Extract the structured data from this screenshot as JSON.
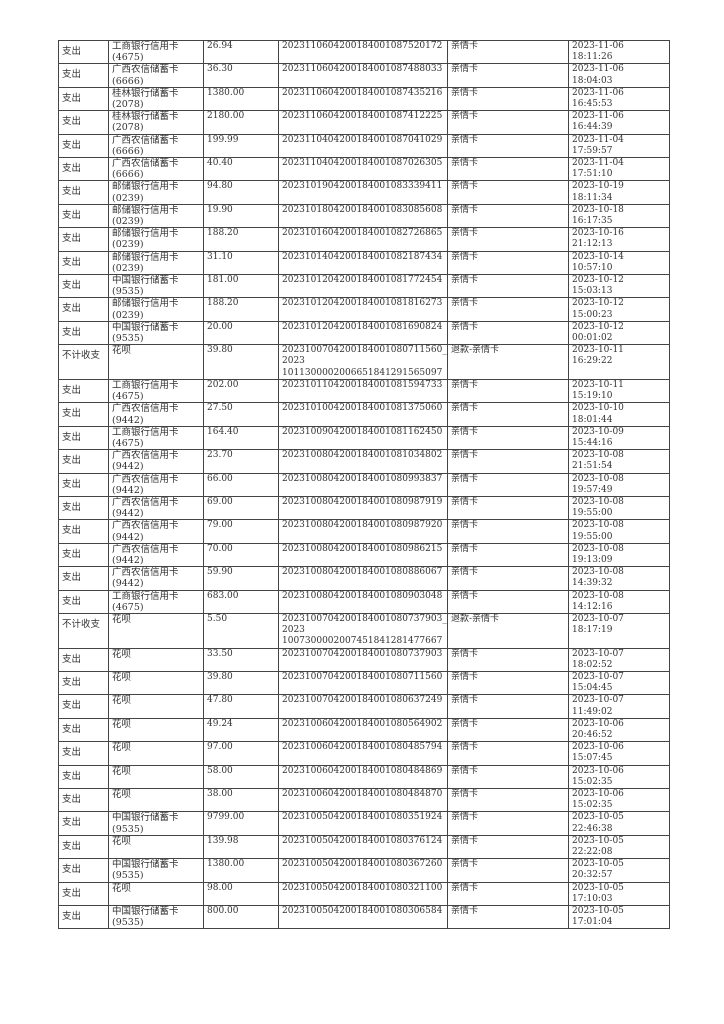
{
  "rows": [
    [
      "支出",
      "工商银行信用卡\n(4675)",
      "26.94",
      "2023110604200184001087520172",
      "亲情卡",
      "2023-11-06\n18:11:26"
    ],
    [
      "支出",
      "广西农信储蓄卡\n(6666)",
      "36.30",
      "2023110604200184001087488033",
      "亲情卡",
      "2023-11-06\n18:04:03"
    ],
    [
      "支出",
      "桂林银行储蓄卡\n(2078)",
      "1380.00",
      "2023110604200184001087435216",
      "亲情卡",
      "2023-11-06\n16:45:53"
    ],
    [
      "支出",
      "桂林银行储蓄卡\n(2078)",
      "2180.00",
      "2023110604200184001087412225",
      "亲情卡",
      "2023-11-06\n16:44:39"
    ],
    [
      "支出",
      "广西农信储蓄卡\n(6666)",
      "199.99",
      "2023110404200184001087041029",
      "亲情卡",
      "2023-11-04\n17:59:57"
    ],
    [
      "支出",
      "广西农信储蓄卡\n(6666)",
      "40.40",
      "2023110404200184001087026305",
      "亲情卡",
      "2023-11-04\n17:51:10"
    ],
    [
      "支出",
      "邮储银行信用卡\n(0239)",
      "94.80",
      "2023101904200184001083339411",
      "亲情卡",
      "2023-10-19\n18:11:34"
    ],
    [
      "支出",
      "邮储银行信用卡\n(0239)",
      "19.90",
      "2023101804200184001083085608",
      "亲情卡",
      "2023-10-18\n16:17:35"
    ],
    [
      "支出",
      "邮储银行信用卡\n(0239)",
      "188.20",
      "2023101604200184001082726865",
      "亲情卡",
      "2023-10-16\n21:12:13"
    ],
    [
      "支出",
      "邮储银行信用卡\n(0239)",
      "31.10",
      "2023101404200184001082187434",
      "亲情卡",
      "2023-10-14\n10:57:10"
    ],
    [
      "支出",
      "中国银行储蓄卡\n(9535)",
      "181.00",
      "2023101204200184001081772454",
      "亲情卡",
      "2023-10-12\n15:03:13"
    ],
    [
      "支出",
      "邮储银行信用卡\n(0239)",
      "188.20",
      "2023101204200184001081816273",
      "亲情卡",
      "2023-10-12\n15:00:23"
    ],
    [
      "支出",
      "中国银行储蓄卡\n(9535)",
      "20.00",
      "2023101204200184001081690824",
      "亲情卡",
      "2023-10-12\n00:01:02"
    ],
    [
      "不计收支",
      "花呗",
      "39.80",
      "2023100704200184001080711560_2023\n1011300002006651841291565097",
      "退款-亲情卡",
      "2023-10-11\n16:29:22"
    ],
    [
      "支出",
      "工商银行信用卡\n(4675)",
      "202.00",
      "2023101104200184001081594733",
      "亲情卡",
      "2023-10-11\n15:19:10"
    ],
    [
      "支出",
      "广西农信信用卡\n(9442)",
      "27.50",
      "2023101004200184001081375060",
      "亲情卡",
      "2023-10-10\n18:01:44"
    ],
    [
      "支出",
      "工商银行信用卡\n(4675)",
      "164.40",
      "2023100904200184001081162450",
      "亲情卡",
      "2023-10-09\n15:44:16"
    ],
    [
      "支出",
      "广西农信信用卡\n(9442)",
      "23.70",
      "2023100804200184001081034802",
      "亲情卡",
      "2023-10-08\n21:51:54"
    ],
    [
      "支出",
      "广西农信信用卡\n(9442)",
      "66.00",
      "2023100804200184001080993837",
      "亲情卡",
      "2023-10-08\n19:57:49"
    ],
    [
      "支出",
      "广西农信信用卡\n(9442)",
      "69.00",
      "2023100804200184001080987919",
      "亲情卡",
      "2023-10-08\n19:55:00"
    ],
    [
      "支出",
      "广西农信信用卡\n(9442)",
      "79.00",
      "2023100804200184001080987920",
      "亲情卡",
      "2023-10-08\n19:55:00"
    ],
    [
      "支出",
      "广西农信信用卡\n(9442)",
      "70.00",
      "2023100804200184001080986215",
      "亲情卡",
      "2023-10-08\n19:13:09"
    ],
    [
      "支出",
      "广西农信信用卡\n(9442)",
      "59.90",
      "2023100804200184001080886067",
      "亲情卡",
      "2023-10-08\n14:39:32"
    ],
    [
      "支出",
      "工商银行信用卡\n(4675)",
      "683.00",
      "2023100804200184001080903048",
      "亲情卡",
      "2023-10-08\n14:12:16"
    ],
    [
      "不计收支",
      "花呗",
      "5.50",
      "2023100704200184001080737903_2023\n1007300002007451841281477667",
      "退款-亲情卡",
      "2023-10-07\n18:17:19"
    ],
    [
      "支出",
      "花呗",
      "33.50",
      "2023100704200184001080737903",
      "亲情卡",
      "2023-10-07\n18:02:52"
    ],
    [
      "支出",
      "花呗",
      "39.80",
      "2023100704200184001080711560",
      "亲情卡",
      "2023-10-07\n15:04:45"
    ],
    [
      "支出",
      "花呗",
      "47.80",
      "2023100704200184001080637249",
      "亲情卡",
      "2023-10-07\n11:49:02"
    ],
    [
      "支出",
      "花呗",
      "49.24",
      "2023100604200184001080564902",
      "亲情卡",
      "2023-10-06\n20:46:52"
    ],
    [
      "支出",
      "花呗",
      "97.00",
      "2023100604200184001080485794",
      "亲情卡",
      "2023-10-06\n15:07:45"
    ],
    [
      "支出",
      "花呗",
      "58.00",
      "2023100604200184001080484869",
      "亲情卡",
      "2023-10-06\n15:02:35"
    ],
    [
      "支出",
      "花呗",
      "38.00",
      "2023100604200184001080484870",
      "亲情卡",
      "2023-10-06\n15:02:35"
    ],
    [
      "支出",
      "中国银行储蓄卡\n(9535)",
      "9799.00",
      "2023100504200184001080351924",
      "亲情卡",
      "2023-10-05\n22:46:38"
    ],
    [
      "支出",
      "花呗",
      "139.98",
      "2023100504200184001080376124",
      "亲情卡",
      "2023-10-05\n22:22:08"
    ],
    [
      "支出",
      "中国银行储蓄卡\n(9535)",
      "1380.00",
      "2023100504200184001080367260",
      "亲情卡",
      "2023-10-05\n20:32:57"
    ],
    [
      "支出",
      "花呗",
      "98.00",
      "2023100504200184001080321100",
      "亲情卡",
      "2023-10-05\n17:10:03"
    ],
    [
      "支出",
      "中国银行储蓄卡\n(9535)",
      "800.00",
      "2023100504200184001080306584",
      "亲情卡",
      "2023-10-05\n17:01:04"
    ]
  ]
}
